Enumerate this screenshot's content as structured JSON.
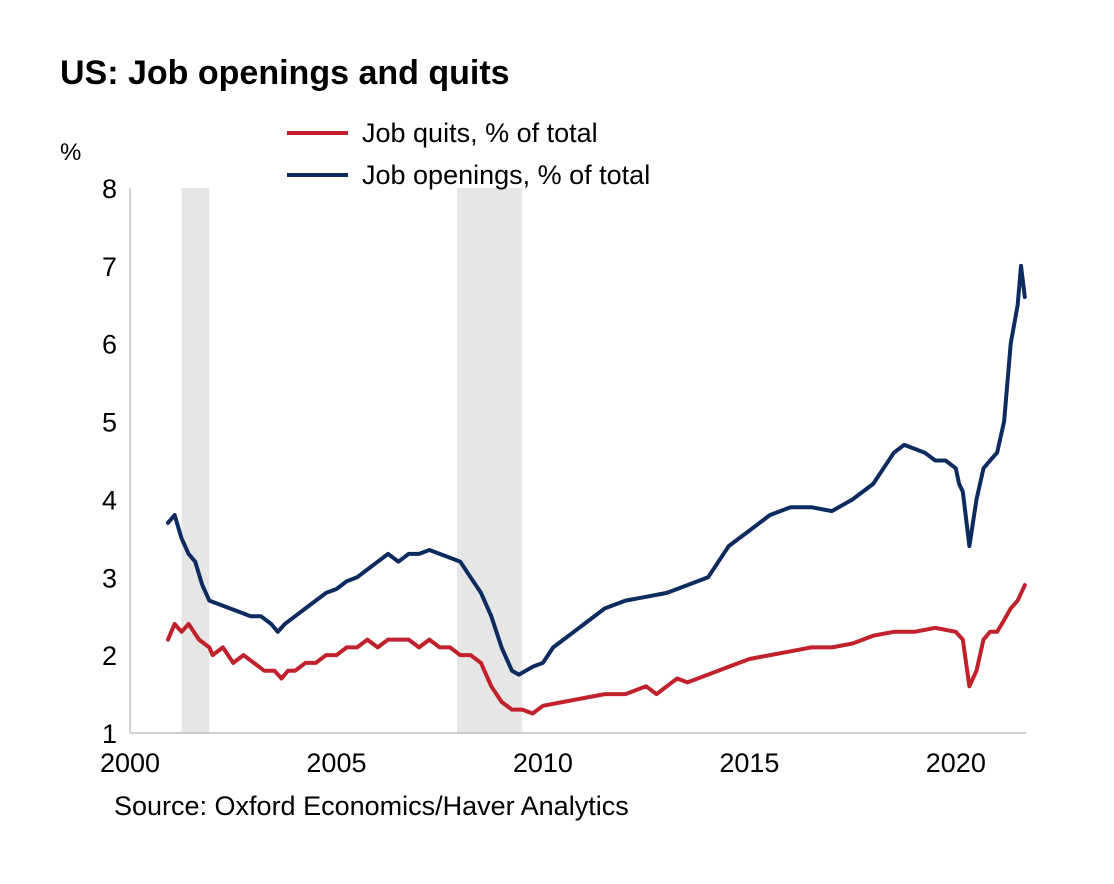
{
  "title": "US: Job openings and quits",
  "unit_label": "%",
  "source": "Source: Oxford Economics/Haver Analytics",
  "colors": {
    "quits": "#c0212c",
    "openings": "#0d2b5e",
    "recession": "#e6e6e6",
    "axis": "#bfbfbf"
  },
  "chart_data": {
    "type": "line",
    "title": "US: Job openings and quits",
    "ylabel": "%",
    "xlabel": "",
    "xlim": [
      2000,
      2021.7
    ],
    "ylim": [
      1,
      8
    ],
    "x_ticks": [
      "2000",
      "2005",
      "2010",
      "2015",
      "2020"
    ],
    "y_ticks": [
      "1",
      "2",
      "3",
      "4",
      "5",
      "6",
      "7",
      "8"
    ],
    "grid": false,
    "legend_position": "top",
    "recessions": [
      [
        2001.25,
        2001.92
      ],
      [
        2007.92,
        2009.5
      ]
    ],
    "series": [
      {
        "name": "Job quits, % of total",
        "color": "#c0212c",
        "points": [
          [
            2000.92,
            2.2
          ],
          [
            2001.08,
            2.4
          ],
          [
            2001.25,
            2.3
          ],
          [
            2001.42,
            2.4
          ],
          [
            2001.67,
            2.2
          ],
          [
            2001.92,
            2.1
          ],
          [
            2002.0,
            2.0
          ],
          [
            2002.25,
            2.1
          ],
          [
            2002.5,
            1.9
          ],
          [
            2002.75,
            2.0
          ],
          [
            2003.0,
            1.9
          ],
          [
            2003.25,
            1.8
          ],
          [
            2003.5,
            1.8
          ],
          [
            2003.67,
            1.7
          ],
          [
            2003.83,
            1.8
          ],
          [
            2004.0,
            1.8
          ],
          [
            2004.25,
            1.9
          ],
          [
            2004.5,
            1.9
          ],
          [
            2004.75,
            2.0
          ],
          [
            2005.0,
            2.0
          ],
          [
            2005.25,
            2.1
          ],
          [
            2005.5,
            2.1
          ],
          [
            2005.75,
            2.2
          ],
          [
            2006.0,
            2.1
          ],
          [
            2006.25,
            2.2
          ],
          [
            2006.5,
            2.2
          ],
          [
            2006.75,
            2.2
          ],
          [
            2007.0,
            2.1
          ],
          [
            2007.25,
            2.2
          ],
          [
            2007.5,
            2.1
          ],
          [
            2007.75,
            2.1
          ],
          [
            2008.0,
            2.0
          ],
          [
            2008.25,
            2.0
          ],
          [
            2008.5,
            1.9
          ],
          [
            2008.75,
            1.6
          ],
          [
            2009.0,
            1.4
          ],
          [
            2009.25,
            1.3
          ],
          [
            2009.5,
            1.3
          ],
          [
            2009.75,
            1.25
          ],
          [
            2010.0,
            1.35
          ],
          [
            2010.5,
            1.4
          ],
          [
            2011.0,
            1.45
          ],
          [
            2011.5,
            1.5
          ],
          [
            2012.0,
            1.5
          ],
          [
            2012.5,
            1.6
          ],
          [
            2012.75,
            1.5
          ],
          [
            2013.0,
            1.6
          ],
          [
            2013.25,
            1.7
          ],
          [
            2013.5,
            1.65
          ],
          [
            2014.0,
            1.75
          ],
          [
            2014.5,
            1.85
          ],
          [
            2015.0,
            1.95
          ],
          [
            2015.5,
            2.0
          ],
          [
            2016.0,
            2.05
          ],
          [
            2016.5,
            2.1
          ],
          [
            2017.0,
            2.1
          ],
          [
            2017.5,
            2.15
          ],
          [
            2018.0,
            2.25
          ],
          [
            2018.5,
            2.3
          ],
          [
            2019.0,
            2.3
          ],
          [
            2019.5,
            2.35
          ],
          [
            2020.0,
            2.3
          ],
          [
            2020.17,
            2.2
          ],
          [
            2020.33,
            1.6
          ],
          [
            2020.5,
            1.8
          ],
          [
            2020.67,
            2.2
          ],
          [
            2020.83,
            2.3
          ],
          [
            2021.0,
            2.3
          ],
          [
            2021.17,
            2.45
          ],
          [
            2021.33,
            2.6
          ],
          [
            2021.5,
            2.7
          ],
          [
            2021.67,
            2.9
          ]
        ]
      },
      {
        "name": "Job openings, % of total",
        "color": "#0d2b5e",
        "points": [
          [
            2000.92,
            3.7
          ],
          [
            2001.08,
            3.8
          ],
          [
            2001.25,
            3.5
          ],
          [
            2001.42,
            3.3
          ],
          [
            2001.58,
            3.2
          ],
          [
            2001.75,
            2.9
          ],
          [
            2001.92,
            2.7
          ],
          [
            2002.17,
            2.65
          ],
          [
            2002.42,
            2.6
          ],
          [
            2002.67,
            2.55
          ],
          [
            2002.92,
            2.5
          ],
          [
            2003.17,
            2.5
          ],
          [
            2003.42,
            2.4
          ],
          [
            2003.58,
            2.3
          ],
          [
            2003.75,
            2.4
          ],
          [
            2004.0,
            2.5
          ],
          [
            2004.25,
            2.6
          ],
          [
            2004.5,
            2.7
          ],
          [
            2004.75,
            2.8
          ],
          [
            2005.0,
            2.85
          ],
          [
            2005.25,
            2.95
          ],
          [
            2005.5,
            3.0
          ],
          [
            2005.75,
            3.1
          ],
          [
            2006.0,
            3.2
          ],
          [
            2006.25,
            3.3
          ],
          [
            2006.5,
            3.2
          ],
          [
            2006.75,
            3.3
          ],
          [
            2007.0,
            3.3
          ],
          [
            2007.25,
            3.35
          ],
          [
            2007.5,
            3.3
          ],
          [
            2007.75,
            3.25
          ],
          [
            2008.0,
            3.2
          ],
          [
            2008.25,
            3.0
          ],
          [
            2008.5,
            2.8
          ],
          [
            2008.75,
            2.5
          ],
          [
            2009.0,
            2.1
          ],
          [
            2009.25,
            1.8
          ],
          [
            2009.42,
            1.75
          ],
          [
            2009.75,
            1.85
          ],
          [
            2010.0,
            1.9
          ],
          [
            2010.25,
            2.1
          ],
          [
            2010.5,
            2.2
          ],
          [
            2010.75,
            2.3
          ],
          [
            2011.0,
            2.4
          ],
          [
            2011.5,
            2.6
          ],
          [
            2012.0,
            2.7
          ],
          [
            2012.5,
            2.75
          ],
          [
            2013.0,
            2.8
          ],
          [
            2013.5,
            2.9
          ],
          [
            2014.0,
            3.0
          ],
          [
            2014.25,
            3.2
          ],
          [
            2014.5,
            3.4
          ],
          [
            2014.75,
            3.5
          ],
          [
            2015.0,
            3.6
          ],
          [
            2015.25,
            3.7
          ],
          [
            2015.5,
            3.8
          ],
          [
            2016.0,
            3.9
          ],
          [
            2016.5,
            3.9
          ],
          [
            2017.0,
            3.85
          ],
          [
            2017.5,
            4.0
          ],
          [
            2018.0,
            4.2
          ],
          [
            2018.25,
            4.4
          ],
          [
            2018.5,
            4.6
          ],
          [
            2018.75,
            4.7
          ],
          [
            2019.0,
            4.65
          ],
          [
            2019.25,
            4.6
          ],
          [
            2019.5,
            4.5
          ],
          [
            2019.75,
            4.5
          ],
          [
            2020.0,
            4.4
          ],
          [
            2020.08,
            4.2
          ],
          [
            2020.17,
            4.1
          ],
          [
            2020.33,
            3.4
          ],
          [
            2020.5,
            4.0
          ],
          [
            2020.67,
            4.4
          ],
          [
            2020.83,
            4.5
          ],
          [
            2021.0,
            4.6
          ],
          [
            2021.17,
            5.0
          ],
          [
            2021.33,
            6.0
          ],
          [
            2021.5,
            6.5
          ],
          [
            2021.58,
            7.0
          ],
          [
            2021.67,
            6.6
          ]
        ]
      }
    ]
  }
}
